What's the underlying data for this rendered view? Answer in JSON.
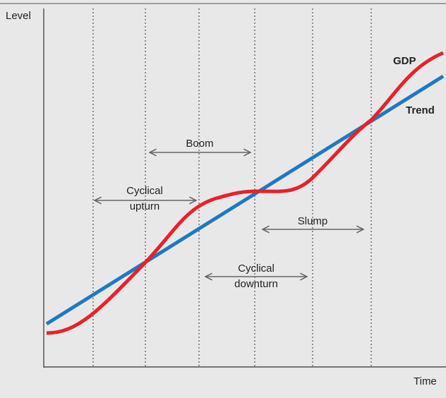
{
  "axes": {
    "y_label": "Level",
    "x_label": "Time"
  },
  "lines": [
    {
      "label": "GDP"
    },
    {
      "label": "Trend"
    }
  ],
  "annotations": [
    {
      "lines": [
        "Boom"
      ]
    },
    {
      "lines": [
        "Cyclical",
        "upturn"
      ]
    },
    {
      "lines": [
        "Slump"
      ]
    },
    {
      "lines": [
        "Cyclical",
        "downturn"
      ]
    }
  ]
}
